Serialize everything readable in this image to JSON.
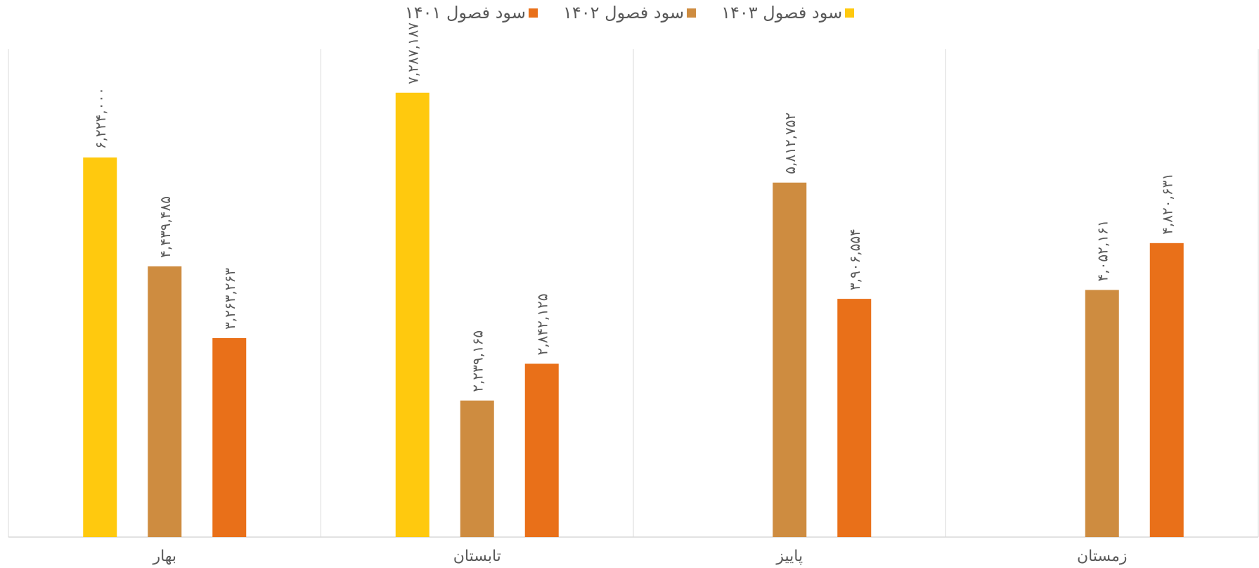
{
  "chart_data": {
    "type": "bar",
    "categories": [
      "بهار",
      "تابستان",
      "پاییز",
      "زمستان"
    ],
    "series": [
      {
        "name": "سود فصول ۱۴۰۳",
        "color": "#FFC90E",
        "values": [
          6224000,
          7287187,
          null,
          null
        ],
        "labels": [
          "۶,۲۲۴,۰۰۰",
          "۷,۲۸۷,۱۸۷",
          "",
          ""
        ]
      },
      {
        "name": "سود فصول ۱۴۰۲",
        "color": "#CE8C40",
        "values": [
          4439485,
          2239165,
          5812752,
          4052161
        ],
        "labels": [
          "۴,۴۳۹,۴۸۵",
          "۲,۲۳۹,۱۶۵",
          "۵,۸۱۲,۷۵۲",
          "۴,۰۵۲,۱۶۱"
        ]
      },
      {
        "name": "سود فصول ۱۴۰۱",
        "color": "#E97019",
        "values": [
          3263263,
          2842125,
          3906554,
          4820631
        ],
        "labels": [
          "۳,۲۶۳,۲۶۳",
          "۲,۸۴۲,۱۲۵",
          "۳,۹۰۶,۵۵۴",
          "۴,۸۲۰,۶۳۱"
        ]
      }
    ],
    "ylim": [
      0,
      8000000
    ],
    "legend_position": "top",
    "grid": false,
    "category_separators": true,
    "title": "",
    "xlabel": "",
    "ylabel": ""
  }
}
